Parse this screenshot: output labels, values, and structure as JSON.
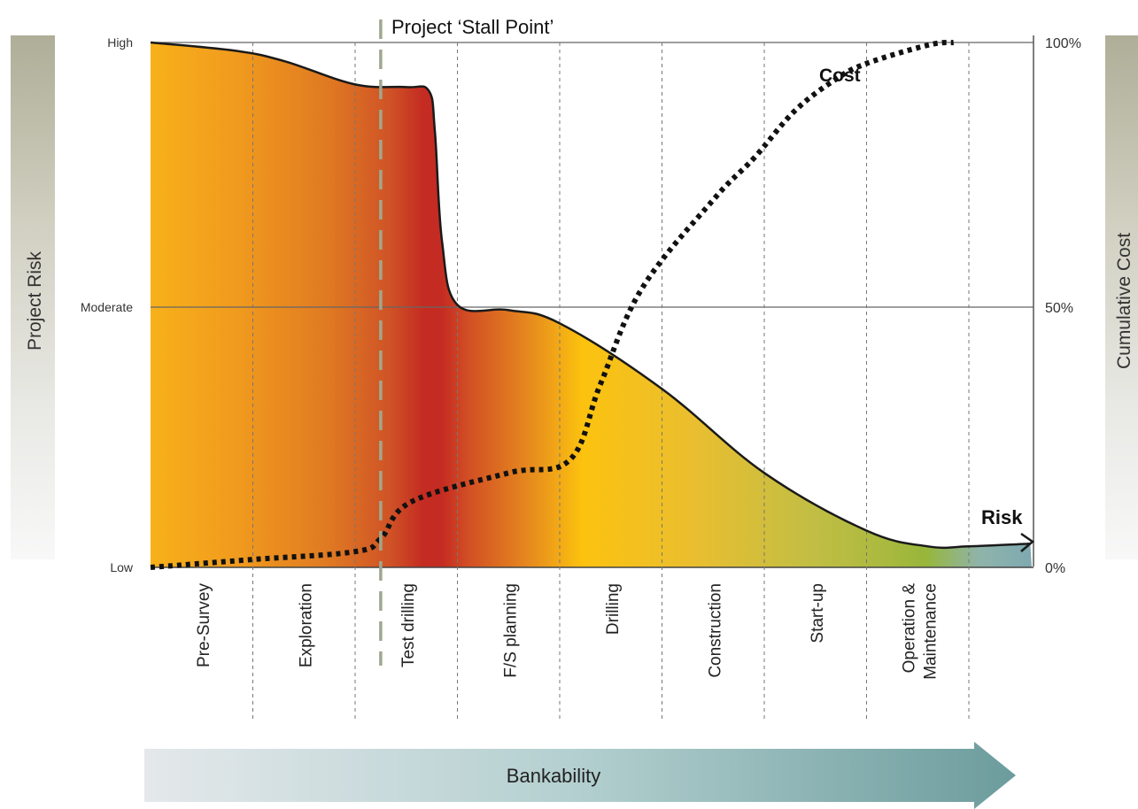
{
  "chart_data": {
    "type": "area",
    "title": "",
    "left_axis": {
      "label": "Project Risk",
      "ticks": [
        {
          "label": "High",
          "value": 1.0
        },
        {
          "label": "Moderate",
          "value": 0.5
        },
        {
          "label": "Low",
          "value": 0.0
        }
      ]
    },
    "right_axis": {
      "label": "Cumulative Cost",
      "ticks": [
        {
          "label": "100%",
          "value": 100
        },
        {
          "label": "50%",
          "value": 50
        },
        {
          "label": "0%",
          "value": 0
        }
      ]
    },
    "phases": [
      "Pre-Survey",
      "Exploration",
      "Test drilling",
      "F/S planning",
      "Drilling",
      "Construction",
      "Start-up",
      "Operation & Maintenance"
    ],
    "stall_point": {
      "label": "Project ‘Stall Point’",
      "phase_position": 2.25
    },
    "series": [
      {
        "name": "Risk",
        "axis": "left",
        "style": "solid-area",
        "points": [
          [
            0,
            1.0
          ],
          [
            0.8,
            0.985
          ],
          [
            1.3,
            0.965
          ],
          [
            2.0,
            0.92
          ],
          [
            2.5,
            0.915
          ],
          [
            2.72,
            0.908
          ],
          [
            2.78,
            0.83
          ],
          [
            2.85,
            0.62
          ],
          [
            3.0,
            0.5
          ],
          [
            3.5,
            0.49
          ],
          [
            4.0,
            0.465
          ],
          [
            5.0,
            0.34
          ],
          [
            6.0,
            0.18
          ],
          [
            7.0,
            0.07
          ],
          [
            7.6,
            0.04
          ],
          [
            8.0,
            0.04
          ],
          [
            8.6,
            0.045
          ]
        ]
      },
      {
        "name": "Cost",
        "axis": "right",
        "style": "dotted-line",
        "points": [
          [
            0,
            0
          ],
          [
            1.0,
            1.5
          ],
          [
            2.0,
            3
          ],
          [
            2.25,
            5.5
          ],
          [
            2.55,
            12.5
          ],
          [
            3.5,
            18
          ],
          [
            4.1,
            20.5
          ],
          [
            4.4,
            35
          ],
          [
            4.8,
            53
          ],
          [
            5.5,
            70
          ],
          [
            5.9,
            78
          ],
          [
            6.3,
            87
          ],
          [
            6.7,
            93
          ],
          [
            7.0,
            96
          ],
          [
            7.6,
            99.5
          ],
          [
            7.85,
            100
          ]
        ]
      }
    ],
    "bankability_label": "Bankability",
    "colors": {
      "orange": "#F6A21A",
      "red": "#C42B22",
      "yellow": "#FCC20F",
      "green": "#97B63A",
      "teal": "#8FB4B4",
      "bank_arrow_start": "#E3E7EA",
      "bank_arrow_end": "#6F9FA0",
      "stall_line": "#9FA88F"
    }
  }
}
